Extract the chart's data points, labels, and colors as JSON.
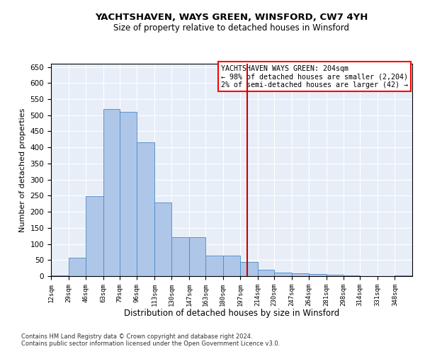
{
  "title": "YACHTSHAVEN, WAYS GREEN, WINSFORD, CW7 4YH",
  "subtitle": "Size of property relative to detached houses in Winsford",
  "xlabel": "Distribution of detached houses by size in Winsford",
  "ylabel": "Number of detached properties",
  "bar_color": "#aec6e8",
  "bar_edge_color": "#4d8ac4",
  "background_color": "#e8eef8",
  "vline_x": 204,
  "vline_color": "#cc0000",
  "annotation_title": "YACHTSHAVEN WAYS GREEN: 204sqm",
  "annotation_line1": "← 98% of detached houses are smaller (2,204)",
  "annotation_line2": "2% of semi-detached houses are larger (42) →",
  "footer1": "Contains HM Land Registry data © Crown copyright and database right 2024.",
  "footer2": "Contains public sector information licensed under the Open Government Licence v3.0.",
  "bin_labels": [
    "12sqm",
    "29sqm",
    "46sqm",
    "63sqm",
    "79sqm",
    "96sqm",
    "113sqm",
    "130sqm",
    "147sqm",
    "163sqm",
    "180sqm",
    "197sqm",
    "214sqm",
    "230sqm",
    "247sqm",
    "264sqm",
    "281sqm",
    "298sqm",
    "314sqm",
    "331sqm",
    "348sqm"
  ],
  "bin_edges": [
    12,
    29,
    46,
    63,
    79,
    96,
    113,
    130,
    147,
    163,
    180,
    197,
    214,
    230,
    247,
    264,
    281,
    298,
    314,
    331,
    348,
    365
  ],
  "bar_heights": [
    3,
    58,
    248,
    520,
    510,
    415,
    228,
    120,
    120,
    63,
    63,
    45,
    20,
    12,
    8,
    7,
    5,
    2,
    1,
    0,
    3
  ],
  "ylim": [
    0,
    660
  ],
  "yticks": [
    0,
    50,
    100,
    150,
    200,
    250,
    300,
    350,
    400,
    450,
    500,
    550,
    600,
    650
  ]
}
